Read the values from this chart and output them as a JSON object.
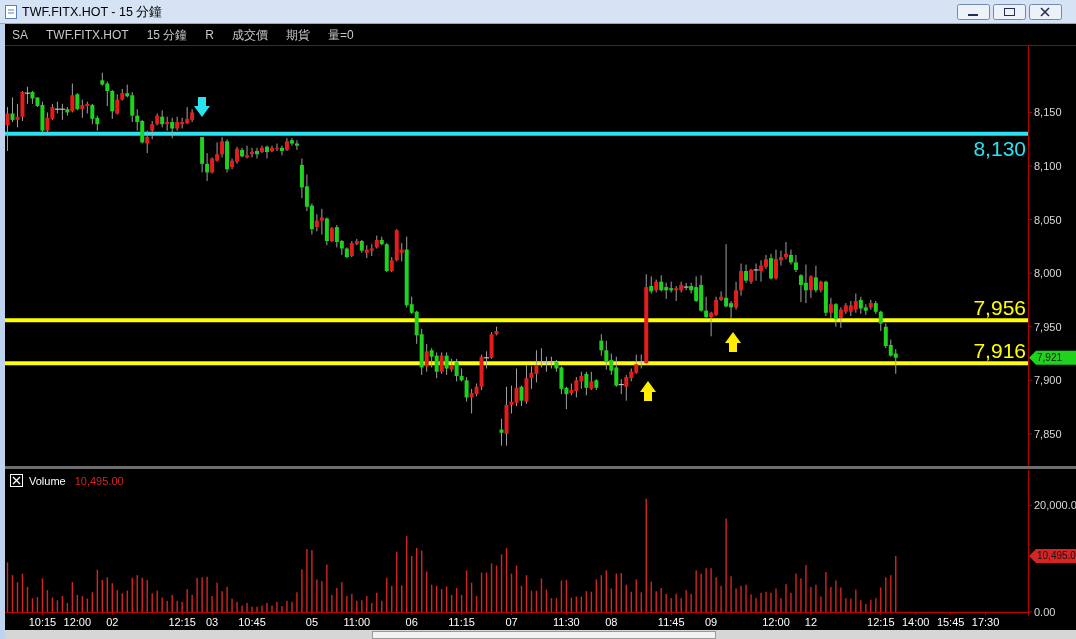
{
  "chart_data": [
    {
      "type": "candlestick",
      "title": "TWF.FITX.HOT - 15 分鐘",
      "annotations": [
        "SA",
        "TWF.FITX.HOT",
        "15 分鐘",
        "R",
        "成交價",
        "期貨",
        "量=0",
        "7,921"
      ],
      "categories": [
        null,
        null,
        null,
        null,
        null,
        null,
        null,
        null,
        null,
        null,
        null,
        null,
        null,
        null,
        null,
        null,
        null,
        null,
        null,
        null,
        null,
        null,
        null,
        null,
        null,
        null,
        null,
        null,
        null,
        null,
        null,
        null,
        null,
        null,
        null,
        null,
        null,
        null,
        null,
        null,
        null,
        null,
        null,
        null,
        null,
        null,
        null,
        null,
        null,
        null,
        null,
        null,
        null,
        null,
        null,
        null,
        null,
        null,
        null,
        null,
        null,
        null,
        null,
        null,
        null,
        null,
        null,
        null,
        null,
        null,
        null,
        null,
        null,
        null,
        null,
        null,
        null,
        null,
        null,
        null,
        null,
        null,
        null,
        null,
        null,
        null,
        null,
        null,
        null,
        null,
        null,
        null,
        null,
        null,
        null,
        null,
        null,
        null,
        null,
        null,
        null,
        null,
        null,
        null,
        null,
        null,
        null,
        null,
        null,
        null,
        null,
        null,
        null,
        null,
        null,
        null,
        null,
        null,
        null,
        null,
        null,
        null,
        null,
        null,
        null,
        null,
        null,
        null,
        null,
        null,
        null,
        null,
        null,
        null,
        null,
        null,
        null,
        null,
        null,
        null,
        null,
        null,
        null,
        null,
        null,
        null,
        null,
        null,
        null,
        null,
        null,
        null,
        null,
        null,
        null,
        null,
        null,
        null,
        null,
        null,
        null,
        null,
        null,
        null,
        null,
        null,
        null,
        null,
        null,
        null,
        null,
        null,
        null,
        null,
        null,
        null,
        null,
        null,
        null,
        null,
        null,
        null,
        null,
        null,
        null,
        null,
        null,
        null,
        null,
        null,
        null,
        null,
        null,
        null,
        null,
        null,
        null,
        null,
        null,
        null,
        null,
        null,
        null,
        null,
        null
      ],
      "ohlc": [
        [
          8138,
          8155,
          8114,
          8149
        ],
        [
          8149,
          8164,
          8141,
          8143
        ],
        [
          8143,
          8158,
          8136,
          8146
        ],
        [
          8146,
          8170,
          8142,
          8169
        ],
        [
          8168,
          8174,
          8158,
          8168
        ],
        [
          8169,
          8170,
          8158,
          8163
        ],
        [
          8164,
          8164,
          8155,
          8156
        ],
        [
          8157,
          8160,
          8131,
          8133
        ],
        [
          8133,
          8150,
          8131,
          8145
        ],
        [
          8144,
          8158,
          8143,
          8155
        ],
        [
          8153,
          8160,
          8149,
          8153
        ],
        [
          8153,
          8158,
          8143,
          8153
        ],
        [
          8153,
          8155,
          8147,
          8150
        ],
        [
          8151,
          8177,
          8150,
          8166
        ],
        [
          8167,
          8168,
          8152,
          8153
        ],
        [
          8153,
          8162,
          8145,
          8157
        ],
        [
          8156,
          8160,
          8149,
          8158
        ],
        [
          8157,
          8158,
          8139,
          8144
        ],
        [
          8145,
          8147,
          8133,
          8139
        ],
        [
          8180,
          8187,
          8175,
          8176
        ],
        [
          8177,
          8179,
          8156,
          8170
        ],
        [
          8170,
          8171,
          8144,
          8151
        ],
        [
          8149,
          8167,
          8148,
          8162
        ],
        [
          8162,
          8172,
          8161,
          8168
        ],
        [
          8168,
          8176,
          8164,
          8165
        ],
        [
          8166,
          8169,
          8141,
          8147
        ],
        [
          8147,
          8153,
          8133,
          8141
        ],
        [
          8142,
          8143,
          8121,
          8122
        ],
        [
          8121,
          8133,
          8112,
          8127
        ],
        [
          8133,
          8142,
          8125,
          8139
        ],
        [
          8139,
          8149,
          8138,
          8147
        ],
        [
          8146,
          8152,
          8136,
          8139
        ],
        [
          8139,
          8146,
          8133,
          8141
        ],
        [
          8141,
          8145,
          8126,
          8135
        ],
        [
          8135,
          8146,
          8133,
          8141
        ],
        [
          8139,
          8145,
          8135,
          8141
        ],
        [
          8140,
          8155,
          8139,
          8144
        ],
        [
          8143,
          8153,
          8141,
          8150
        ],
        null,
        [
          8127,
          8127,
          8094,
          8102
        ],
        [
          8102,
          8112,
          8086,
          8094
        ],
        [
          8094,
          8108,
          8093,
          8107
        ],
        [
          8105,
          8122,
          8104,
          8111
        ],
        [
          8111,
          8127,
          8108,
          8123
        ],
        [
          8123,
          8125,
          8094,
          8097
        ],
        [
          8099,
          8107,
          8097,
          8105
        ],
        [
          8104,
          8118,
          8102,
          8116
        ],
        [
          8115,
          8117,
          8108,
          8109
        ],
        [
          8108,
          8119,
          8107,
          8110
        ],
        [
          8111,
          8117,
          8108,
          8113
        ],
        [
          8114,
          8117,
          8107,
          8111
        ],
        [
          8113,
          8119,
          8112,
          8117
        ],
        [
          8118,
          8119,
          8107,
          8113
        ],
        [
          8114,
          8119,
          8113,
          8117
        ],
        [
          8116,
          8121,
          8114,
          8117
        ],
        [
          8117,
          8119,
          8110,
          8114
        ],
        [
          8115,
          8126,
          8114,
          8123
        ],
        [
          8124,
          8126,
          8119,
          8121
        ],
        [
          8121,
          8124,
          8115,
          8119
        ],
        [
          8101,
          8107,
          8070,
          8080
        ],
        [
          8081,
          8092,
          8058,
          8062
        ],
        [
          8063,
          8065,
          8036,
          8041
        ],
        [
          8043,
          8055,
          8039,
          8049
        ],
        [
          8049,
          8060,
          8036,
          8052
        ],
        [
          8051,
          8052,
          8026,
          8030
        ],
        [
          8030,
          8043,
          8029,
          8042
        ],
        [
          8043,
          8045,
          8024,
          8029
        ],
        [
          8030,
          8031,
          8017,
          8023
        ],
        [
          8023,
          8024,
          8014,
          8015
        ],
        [
          8016,
          8030,
          8015,
          8028
        ],
        [
          8027,
          8032,
          8026,
          8030
        ],
        [
          8030,
          8031,
          8019,
          8021
        ],
        [
          8019,
          8026,
          8014,
          8022
        ],
        [
          8021,
          8027,
          8016,
          8023
        ],
        [
          8024,
          8035,
          8023,
          8031
        ],
        [
          8031,
          8034,
          8026,
          8027
        ],
        [
          8027,
          8028,
          8001,
          8002
        ],
        [
          8002,
          8015,
          8001,
          8012
        ],
        [
          8012,
          8041,
          8011,
          8040
        ],
        [
          8019,
          8028,
          8011,
          8022
        ],
        [
          8022,
          8034,
          7968,
          7970
        ],
        [
          7971,
          7978,
          7962,
          7963
        ],
        [
          7964,
          7965,
          7934,
          7942
        ],
        [
          7943,
          7948,
          7905,
          7912
        ],
        [
          7913,
          7934,
          7908,
          7927
        ],
        [
          7928,
          7930,
          7912,
          7922
        ],
        [
          7923,
          7926,
          7902,
          7908
        ],
        [
          7908,
          7926,
          7906,
          7923
        ],
        [
          7923,
          7926,
          7905,
          7911
        ],
        [
          7910,
          7920,
          7908,
          7914
        ],
        [
          7917,
          7920,
          7899,
          7904
        ],
        [
          7904,
          7911,
          7899,
          7900
        ],
        [
          7900,
          7903,
          7880,
          7884
        ],
        [
          7884,
          7892,
          7869,
          7888
        ],
        [
          7887,
          7897,
          7885,
          7894
        ],
        [
          7894,
          7924,
          7891,
          7922
        ],
        [
          7921,
          7927,
          7911,
          7921
        ],
        [
          7921,
          7945,
          7920,
          7943
        ],
        [
          7943,
          7950,
          7942,
          7946
        ],
        [
          7854,
          7864,
          7839,
          7851
        ],
        [
          7850,
          7894,
          7839,
          7877
        ],
        [
          7877,
          7895,
          7869,
          7880
        ],
        [
          7879,
          7911,
          7876,
          7893
        ],
        [
          7894,
          7895,
          7876,
          7881
        ],
        [
          7880,
          7914,
          7878,
          7902
        ],
        [
          7902,
          7913,
          7892,
          7907
        ],
        [
          7906,
          7928,
          7898,
          7914
        ],
        [
          7917,
          7930,
          7912,
          7917
        ],
        [
          7917,
          7922,
          7908,
          7917
        ],
        [
          7917,
          7922,
          7911,
          7917
        ],
        [
          7917,
          7919,
          7908,
          7911
        ],
        [
          7912,
          7913,
          7887,
          7892
        ],
        [
          7893,
          7894,
          7873,
          7887
        ],
        [
          7888,
          7897,
          7886,
          7891
        ],
        [
          7890,
          7903,
          7884,
          7900
        ],
        [
          7899,
          7908,
          7892,
          7904
        ],
        [
          7906,
          7908,
          7886,
          7893
        ],
        [
          7892,
          7908,
          7891,
          7899
        ],
        [
          7900,
          7901,
          7891,
          7893
        ],
        [
          7937,
          7943,
          7923,
          7928
        ],
        [
          7928,
          7937,
          7910,
          7917
        ],
        [
          7919,
          7925,
          7905,
          7909
        ],
        [
          7912,
          7922,
          7894,
          7895
        ],
        [
          7896,
          7901,
          7887,
          7896
        ],
        [
          7894,
          7905,
          7881,
          7903
        ],
        [
          7902,
          7911,
          7899,
          7908
        ],
        [
          7907,
          7924,
          7906,
          7915
        ],
        [
          7917,
          7924,
          7911,
          7917
        ],
        [
          7916,
          7999,
          7915,
          7987
        ],
        [
          7988,
          7997,
          7981,
          7983
        ],
        [
          7984,
          7994,
          7982,
          7992
        ],
        [
          7992,
          7998,
          7983,
          7984
        ],
        [
          7987,
          7991,
          7976,
          7984
        ],
        [
          7986,
          7992,
          7982,
          7984
        ],
        [
          7984,
          7988,
          7974,
          7986
        ],
        [
          7984,
          7992,
          7982,
          7989
        ],
        [
          7987,
          7991,
          7984,
          7987
        ],
        [
          7988,
          7991,
          7981,
          7984
        ],
        [
          7987,
          7997,
          7973,
          7974
        ],
        [
          7989,
          7998,
          7964,
          7965
        ],
        [
          7965,
          7978,
          7957,
          7959
        ],
        [
          7959,
          7964,
          7941,
          7963
        ],
        [
          7961,
          7978,
          7960,
          7975
        ],
        [
          7975,
          7983,
          7974,
          7978
        ],
        [
          7977,
          8027,
          7968,
          7969
        ],
        [
          7972,
          7974,
          7958,
          7968
        ],
        [
          7968,
          7992,
          7966,
          7984
        ],
        [
          7984,
          8009,
          7979,
          8002
        ],
        [
          8002,
          8008,
          7991,
          7993
        ],
        [
          7992,
          8004,
          7990,
          8003
        ],
        [
          8003,
          8009,
          7993,
          8003
        ],
        [
          8002,
          8012,
          7992,
          8007
        ],
        [
          8006,
          8017,
          8004,
          8013
        ],
        [
          8014,
          8018,
          7994,
          7995
        ],
        [
          7995,
          8022,
          7994,
          8013
        ],
        [
          8012,
          8021,
          8007,
          8015
        ],
        [
          8015,
          8029,
          8013,
          8018
        ],
        [
          8017,
          8022,
          8008,
          8010
        ],
        [
          8010,
          8017,
          8001,
          8003
        ],
        [
          7998,
          7999,
          7973,
          7989
        ],
        [
          7991,
          8008,
          7972,
          7984
        ],
        [
          7984,
          7998,
          7977,
          7997
        ],
        [
          7996,
          8007,
          7982,
          7984
        ],
        [
          7984,
          7993,
          7982,
          7992
        ],
        [
          7992,
          7993,
          7960,
          7963
        ],
        [
          7963,
          7977,
          7958,
          7971
        ],
        [
          7971,
          7972,
          7950,
          7957
        ],
        [
          7958,
          7968,
          7949,
          7966
        ],
        [
          7964,
          7972,
          7962,
          7970
        ],
        [
          7964,
          7974,
          7960,
          7970
        ],
        [
          7966,
          7981,
          7963,
          7974
        ],
        [
          7975,
          7978,
          7962,
          7967
        ],
        [
          7968,
          7971,
          7961,
          7965
        ],
        [
          7968,
          7975,
          7966,
          7972
        ],
        [
          7972,
          7974,
          7962,
          7964
        ],
        [
          7964,
          7965,
          7946,
          7953
        ],
        [
          7950,
          7953,
          7930,
          7932
        ],
        [
          7933,
          7938,
          7922,
          7923
        ],
        [
          7925,
          7929,
          7906,
          7921
        ],
        null,
        null,
        null,
        null,
        null,
        null,
        null,
        null,
        null,
        null,
        null,
        null,
        null,
        null,
        null,
        null,
        null,
        null,
        null,
        null,
        null,
        null,
        null,
        null,
        null,
        null
      ],
      "colors": [
        "#e41c1c",
        "#1ed21e",
        "#e41c1c",
        "#e41c1c",
        "#c0c0c0",
        "#1ed21e",
        "#1ed21e",
        "#1ed21e",
        "#e41c1c",
        "#e41c1c",
        "#c0c0c0",
        "#c0c0c0",
        "#1ed21e",
        "#e41c1c",
        "#1ed21e",
        "#e41c1c",
        "#e41c1c",
        "#1ed21e",
        "#1ed21e",
        "#1ed21e",
        "#1ed21e",
        "#1ed21e",
        "#e41c1c",
        "#e41c1c",
        "#1ed21e",
        "#1ed21e",
        "#1ed21e",
        "#1ed21e",
        "#e41c1c",
        "#e41c1c",
        "#e41c1c",
        "#1ed21e",
        "#e41c1c",
        "#1ed21e",
        "#e41c1c",
        "#e41c1c",
        "#e41c1c",
        "#e41c1c",
        null,
        "#1ed21e",
        "#1ed21e",
        "#e41c1c",
        "#e41c1c",
        "#e41c1c",
        "#1ed21e",
        "#e41c1c",
        "#e41c1c",
        "#1ed21e",
        "#e41c1c",
        "#e41c1c",
        "#1ed21e",
        "#e41c1c",
        "#1ed21e",
        "#e41c1c",
        "#e41c1c",
        "#1ed21e",
        "#e41c1c",
        "#1ed21e",
        "#1ed21e",
        "#1ed21e",
        "#1ed21e",
        "#1ed21e",
        "#e41c1c",
        "#e41c1c",
        "#1ed21e",
        "#e41c1c",
        "#1ed21e",
        "#1ed21e",
        "#1ed21e",
        "#e41c1c",
        "#e41c1c",
        "#1ed21e",
        "#e41c1c",
        "#e41c1c",
        "#e41c1c",
        "#1ed21e",
        "#1ed21e",
        "#e41c1c",
        "#e41c1c",
        "#e41c1c",
        "#1ed21e",
        "#1ed21e",
        "#1ed21e",
        "#1ed21e",
        "#e41c1c",
        "#1ed21e",
        "#1ed21e",
        "#e41c1c",
        "#1ed21e",
        "#e41c1c",
        "#1ed21e",
        "#1ed21e",
        "#1ed21e",
        "#e41c1c",
        "#e41c1c",
        "#e41c1c",
        "#c0c0c0",
        "#e41c1c",
        "#e41c1c",
        "#1ed21e",
        "#e41c1c",
        "#e41c1c",
        "#e41c1c",
        "#1ed21e",
        "#e41c1c",
        "#e41c1c",
        "#e41c1c",
        "#c0c0c0",
        "#c0c0c0",
        "#c0c0c0",
        "#1ed21e",
        "#1ed21e",
        "#1ed21e",
        "#e41c1c",
        "#e41c1c",
        "#e41c1c",
        "#1ed21e",
        "#e41c1c",
        "#1ed21e",
        "#1ed21e",
        "#1ed21e",
        "#1ed21e",
        "#1ed21e",
        "#c0c0c0",
        "#e41c1c",
        "#e41c1c",
        "#e41c1c",
        "#c0c0c0",
        "#e41c1c",
        "#1ed21e",
        "#e41c1c",
        "#1ed21e",
        "#1ed21e",
        "#1ed21e",
        "#e41c1c",
        "#e41c1c",
        "#c0c0c0",
        "#1ed21e",
        "#1ed21e",
        "#1ed21e",
        "#1ed21e",
        "#e41c1c",
        "#e41c1c",
        "#e41c1c",
        "#1ed21e",
        "#1ed21e",
        "#e41c1c",
        "#e41c1c",
        "#1ed21e",
        "#e41c1c",
        "#c0c0c0",
        "#e41c1c",
        "#e41c1c",
        "#1ed21e",
        "#e41c1c",
        "#e41c1c",
        "#e41c1c",
        "#1ed21e",
        "#1ed21e",
        "#1ed21e",
        "#1ed21e",
        "#e41c1c",
        "#1ed21e",
        "#e41c1c",
        "#1ed21e",
        "#e41c1c",
        "#1ed21e",
        "#e41c1c",
        "#e41c1c",
        "#e41c1c",
        "#e41c1c",
        "#1ed21e",
        "#1ed21e",
        "#e41c1c",
        "#1ed21e",
        "#1ed21e",
        "#1ed21e",
        "#1ed21e",
        "#1ed21e",
        null,
        null,
        null,
        null,
        null,
        null,
        null,
        null,
        null,
        null,
        null,
        null,
        null,
        null,
        null,
        null,
        null,
        null,
        null,
        null,
        null,
        null,
        null,
        null,
        null,
        null
      ],
      "ylim": [
        7820,
        8212
      ],
      "yticks": [
        {
          "value": 7850,
          "label": "7,850"
        },
        {
          "value": 7900,
          "label": "7,900"
        },
        {
          "value": 7950,
          "label": "7,950"
        },
        {
          "value": 8000,
          "label": "8,000"
        },
        {
          "value": 8050,
          "label": "8,050"
        },
        {
          "value": 8100,
          "label": "8,100"
        },
        {
          "value": 8150,
          "label": "8,150"
        }
      ],
      "tick_labels": "y",
      "ref_lines": [
        {
          "axis": "y",
          "value": 8130,
          "label": "8,130",
          "color": "#29e2f2"
        },
        {
          "axis": "y",
          "value": 7956,
          "label": "7,956",
          "color": "#ffff00"
        },
        {
          "axis": "y",
          "value": 7916,
          "label": "7,916",
          "color": "#ffff00"
        }
      ]
    },
    {
      "type": "bar",
      "title": "Volume",
      "annotations": [
        "10,495.00",
        "10,495.0"
      ],
      "categories": [
        null,
        null,
        null,
        null,
        null,
        null,
        null,
        "10:15",
        null,
        null,
        null,
        null,
        null,
        null,
        "12:00",
        null,
        null,
        null,
        null,
        null,
        null,
        "02",
        null,
        null,
        null,
        null,
        null,
        null,
        null,
        null,
        null,
        null,
        null,
        null,
        null,
        "12:15",
        null,
        null,
        null,
        null,
        null,
        "03",
        null,
        null,
        null,
        null,
        null,
        null,
        null,
        "10:45",
        null,
        null,
        null,
        null,
        null,
        null,
        null,
        null,
        null,
        null,
        null,
        "05",
        null,
        null,
        null,
        null,
        null,
        null,
        null,
        null,
        "11:00",
        null,
        null,
        null,
        null,
        null,
        null,
        null,
        null,
        null,
        null,
        "06",
        null,
        null,
        null,
        null,
        null,
        null,
        null,
        null,
        null,
        "11:15",
        null,
        null,
        null,
        null,
        null,
        null,
        null,
        null,
        null,
        "07",
        null,
        null,
        null,
        null,
        null,
        null,
        null,
        null,
        null,
        null,
        "11:30",
        null,
        null,
        null,
        null,
        null,
        null,
        null,
        null,
        "08",
        null,
        null,
        null,
        null,
        null,
        null,
        null,
        null,
        null,
        null,
        null,
        "11:45",
        null,
        null,
        null,
        null,
        null,
        null,
        null,
        "09",
        null,
        null,
        null,
        null,
        null,
        null,
        null,
        null,
        null,
        null,
        null,
        null,
        "12:00",
        null,
        null,
        null,
        null,
        null,
        null,
        "12",
        null,
        null,
        null,
        null,
        null,
        null,
        null,
        null,
        null,
        null,
        null,
        null,
        null,
        "12:15",
        null,
        null,
        null,
        null,
        null,
        null,
        "14:00",
        null,
        null,
        null,
        null,
        null,
        null,
        "15:45",
        null,
        null,
        null,
        null,
        null,
        null,
        "17:30",
        null,
        null,
        null,
        null,
        null,
        null,
        null,
        null
      ],
      "values": [
        9300,
        6900,
        5600,
        7200,
        4700,
        2600,
        2800,
        6300,
        4100,
        2700,
        2200,
        3000,
        1700,
        5600,
        3200,
        3000,
        2500,
        3700,
        7900,
        6000,
        6500,
        5400,
        4100,
        3500,
        4000,
        6400,
        6900,
        6400,
        6000,
        3500,
        4000,
        2700,
        2100,
        3200,
        2100,
        1900,
        4300,
        3200,
        6400,
        6500,
        6600,
        3000,
        5500,
        3900,
        4700,
        2500,
        1900,
        1200,
        1700,
        1000,
        1000,
        1200,
        1700,
        1200,
        1900,
        1100,
        2100,
        1900,
        3700,
        8000,
        11800,
        11600,
        6100,
        5800,
        8900,
        3200,
        4500,
        5600,
        3000,
        3400,
        2100,
        2200,
        3000,
        1700,
        3600,
        2100,
        6400,
        4900,
        11300,
        5000,
        14200,
        10500,
        12000,
        11500,
        7600,
        5100,
        4900,
        4300,
        4800,
        3200,
        4500,
        3200,
        7800,
        5500,
        3000,
        7400,
        7400,
        9100,
        8700,
        10800,
        12000,
        7200,
        8700,
        4900,
        6900,
        4000,
        4000,
        6300,
        4200,
        2600,
        2600,
        5900,
        6000,
        2700,
        2900,
        2900,
        3900,
        3800,
        6100,
        6900,
        7800,
        4400,
        7200,
        7300,
        5100,
        3800,
        6100,
        3700,
        21200,
        5700,
        3900,
        4500,
        3400,
        2600,
        3400,
        2600,
        4100,
        3400,
        7800,
        7200,
        8200,
        8200,
        6500,
        4900,
        17500,
        6700,
        4400,
        4900,
        5100,
        3300,
        2600,
        3600,
        3800,
        3600,
        4400,
        2600,
        5200,
        3600,
        7200,
        6300,
        8800,
        4700,
        5100,
        2900,
        7500,
        4700,
        5900,
        4600,
        2600,
        2500,
        4200,
        2200,
        1500,
        2300,
        2600,
        4600,
        6500,
        6900,
        10495,
        null,
        null,
        null,
        null,
        null,
        null,
        null,
        null,
        null,
        null,
        null,
        null,
        null,
        null,
        null,
        null,
        null,
        null,
        null,
        null,
        null,
        null,
        null,
        null,
        null,
        null
      ],
      "color": "#d42424",
      "ylim": [
        0,
        26600
      ],
      "yticks": [
        {
          "value": 0,
          "label": "0.00"
        },
        {
          "value": 20000,
          "label": "20,000.0"
        }
      ]
    }
  ]
}
